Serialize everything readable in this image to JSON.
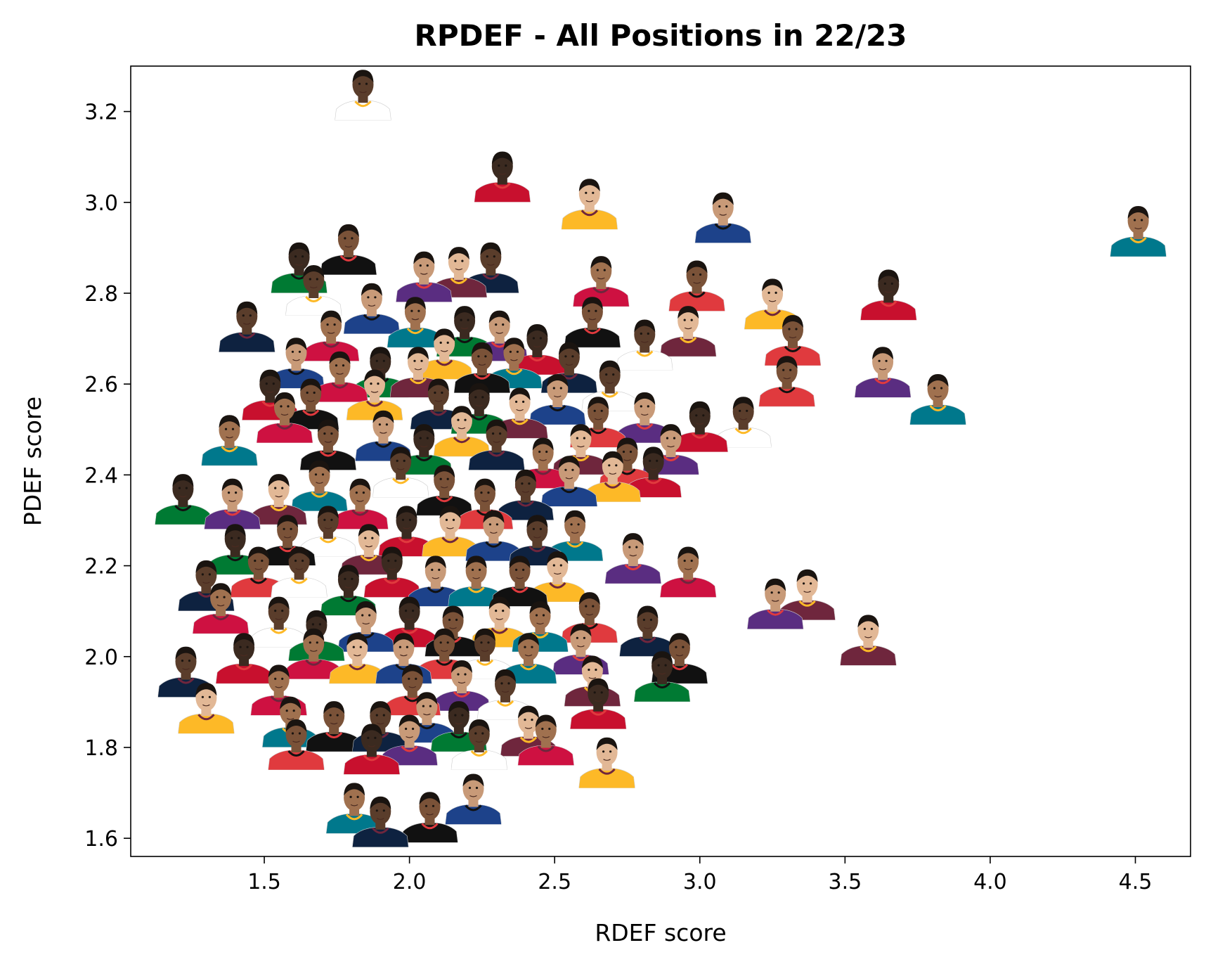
{
  "chart_data": {
    "type": "scatter",
    "title": "RPDEF - All Positions in 22/23",
    "xlabel": "RDEF score",
    "ylabel": "PDEF score",
    "xlim": [
      1.04,
      4.69
    ],
    "ylim": [
      1.56,
      3.3
    ],
    "xticks": [
      "1.5",
      "2.0",
      "2.5",
      "3.0",
      "3.5",
      "4.0",
      "4.5"
    ],
    "yticks": [
      "1.6",
      "1.8",
      "2.0",
      "2.2",
      "2.4",
      "2.6",
      "2.8",
      "3.0",
      "3.2"
    ],
    "grid": false,
    "marker": "player-headshot",
    "colors": {
      "jersey_palette": [
        "#1d428a",
        "#ce1141",
        "#111111",
        "#ffffff",
        "#007a33",
        "#fdb927",
        "#5a2d81",
        "#00788c",
        "#e03a3e",
        "#0e2240",
        "#c8102e",
        "#6f263d"
      ],
      "skin_palette": [
        "#3b2a20",
        "#5a3d2b",
        "#7a5238",
        "#a0714f",
        "#c89a78",
        "#e2b896"
      ]
    },
    "points": [
      {
        "x": 1.84,
        "y": 3.23
      },
      {
        "x": 2.32,
        "y": 3.05
      },
      {
        "x": 2.62,
        "y": 2.99
      },
      {
        "x": 3.08,
        "y": 2.96
      },
      {
        "x": 4.51,
        "y": 2.93
      },
      {
        "x": 1.79,
        "y": 2.89
      },
      {
        "x": 2.66,
        "y": 2.82
      },
      {
        "x": 2.28,
        "y": 2.85
      },
      {
        "x": 2.05,
        "y": 2.83
      },
      {
        "x": 2.17,
        "y": 2.84
      },
      {
        "x": 1.67,
        "y": 2.8
      },
      {
        "x": 2.99,
        "y": 2.81
      },
      {
        "x": 1.62,
        "y": 2.85
      },
      {
        "x": 3.65,
        "y": 2.79
      },
      {
        "x": 3.25,
        "y": 2.77
      },
      {
        "x": 1.44,
        "y": 2.72
      },
      {
        "x": 1.87,
        "y": 2.76
      },
      {
        "x": 2.02,
        "y": 2.73
      },
      {
        "x": 2.19,
        "y": 2.71
      },
      {
        "x": 2.31,
        "y": 2.7
      },
      {
        "x": 2.63,
        "y": 2.73
      },
      {
        "x": 2.81,
        "y": 2.68
      },
      {
        "x": 2.96,
        "y": 2.71
      },
      {
        "x": 3.32,
        "y": 2.69
      },
      {
        "x": 1.73,
        "y": 2.7
      },
      {
        "x": 2.44,
        "y": 2.67
      },
      {
        "x": 2.12,
        "y": 2.66
      },
      {
        "x": 1.61,
        "y": 2.64
      },
      {
        "x": 1.76,
        "y": 2.61
      },
      {
        "x": 1.9,
        "y": 2.62
      },
      {
        "x": 2.03,
        "y": 2.62
      },
      {
        "x": 2.25,
        "y": 2.63
      },
      {
        "x": 2.36,
        "y": 2.64
      },
      {
        "x": 2.55,
        "y": 2.63
      },
      {
        "x": 2.69,
        "y": 2.59
      },
      {
        "x": 3.3,
        "y": 2.6
      },
      {
        "x": 3.63,
        "y": 2.62
      },
      {
        "x": 1.52,
        "y": 2.57
      },
      {
        "x": 1.66,
        "y": 2.55
      },
      {
        "x": 1.88,
        "y": 2.57
      },
      {
        "x": 2.1,
        "y": 2.55
      },
      {
        "x": 2.24,
        "y": 2.54
      },
      {
        "x": 2.38,
        "y": 2.53
      },
      {
        "x": 2.51,
        "y": 2.56
      },
      {
        "x": 2.65,
        "y": 2.51
      },
      {
        "x": 2.81,
        "y": 2.52
      },
      {
        "x": 3.0,
        "y": 2.5
      },
      {
        "x": 3.15,
        "y": 2.51
      },
      {
        "x": 3.82,
        "y": 2.56
      },
      {
        "x": 1.38,
        "y": 2.47
      },
      {
        "x": 1.57,
        "y": 2.52
      },
      {
        "x": 1.72,
        "y": 2.46
      },
      {
        "x": 1.91,
        "y": 2.48
      },
      {
        "x": 2.05,
        "y": 2.45
      },
      {
        "x": 2.18,
        "y": 2.49
      },
      {
        "x": 2.3,
        "y": 2.46
      },
      {
        "x": 2.46,
        "y": 2.42
      },
      {
        "x": 2.59,
        "y": 2.45
      },
      {
        "x": 2.75,
        "y": 2.42
      },
      {
        "x": 2.9,
        "y": 2.45
      },
      {
        "x": 1.22,
        "y": 2.34
      },
      {
        "x": 1.39,
        "y": 2.33
      },
      {
        "x": 1.55,
        "y": 2.34
      },
      {
        "x": 1.69,
        "y": 2.37
      },
      {
        "x": 1.83,
        "y": 2.33
      },
      {
        "x": 1.97,
        "y": 2.4
      },
      {
        "x": 2.12,
        "y": 2.36
      },
      {
        "x": 2.26,
        "y": 2.33
      },
      {
        "x": 2.4,
        "y": 2.35
      },
      {
        "x": 2.55,
        "y": 2.38
      },
      {
        "x": 2.7,
        "y": 2.39
      },
      {
        "x": 2.84,
        "y": 2.4
      },
      {
        "x": 1.4,
        "y": 2.23
      },
      {
        "x": 1.58,
        "y": 2.25
      },
      {
        "x": 1.72,
        "y": 2.27
      },
      {
        "x": 1.86,
        "y": 2.23
      },
      {
        "x": 1.99,
        "y": 2.27
      },
      {
        "x": 2.14,
        "y": 2.27
      },
      {
        "x": 2.29,
        "y": 2.26
      },
      {
        "x": 2.44,
        "y": 2.25
      },
      {
        "x": 2.57,
        "y": 2.26
      },
      {
        "x": 2.77,
        "y": 2.21
      },
      {
        "x": 2.96,
        "y": 2.18
      },
      {
        "x": 1.3,
        "y": 2.15
      },
      {
        "x": 1.48,
        "y": 2.18
      },
      {
        "x": 1.62,
        "y": 2.18
      },
      {
        "x": 1.79,
        "y": 2.14
      },
      {
        "x": 1.94,
        "y": 2.18
      },
      {
        "x": 2.09,
        "y": 2.16
      },
      {
        "x": 2.23,
        "y": 2.16
      },
      {
        "x": 2.38,
        "y": 2.16
      },
      {
        "x": 2.51,
        "y": 2.17
      },
      {
        "x": 3.26,
        "y": 2.11
      },
      {
        "x": 3.37,
        "y": 2.13
      },
      {
        "x": 1.35,
        "y": 2.1
      },
      {
        "x": 1.55,
        "y": 2.07
      },
      {
        "x": 1.68,
        "y": 2.04
      },
      {
        "x": 1.85,
        "y": 2.06
      },
      {
        "x": 2.0,
        "y": 2.07
      },
      {
        "x": 2.15,
        "y": 2.05
      },
      {
        "x": 2.31,
        "y": 2.07
      },
      {
        "x": 2.45,
        "y": 2.06
      },
      {
        "x": 2.62,
        "y": 2.08
      },
      {
        "x": 2.82,
        "y": 2.05
      },
      {
        "x": 3.58,
        "y": 2.03
      },
      {
        "x": 1.43,
        "y": 1.99
      },
      {
        "x": 1.67,
        "y": 2.0
      },
      {
        "x": 1.82,
        "y": 1.99
      },
      {
        "x": 1.98,
        "y": 1.99
      },
      {
        "x": 2.12,
        "y": 2.0
      },
      {
        "x": 2.26,
        "y": 2.0
      },
      {
        "x": 2.41,
        "y": 1.99
      },
      {
        "x": 2.59,
        "y": 2.01
      },
      {
        "x": 2.93,
        "y": 1.99
      },
      {
        "x": 1.23,
        "y": 1.96
      },
      {
        "x": 1.55,
        "y": 1.92
      },
      {
        "x": 2.01,
        "y": 1.92
      },
      {
        "x": 2.18,
        "y": 1.93
      },
      {
        "x": 2.33,
        "y": 1.91
      },
      {
        "x": 2.63,
        "y": 1.94
      },
      {
        "x": 2.87,
        "y": 1.95
      },
      {
        "x": 1.3,
        "y": 1.88
      },
      {
        "x": 1.59,
        "y": 1.85
      },
      {
        "x": 1.74,
        "y": 1.84
      },
      {
        "x": 1.9,
        "y": 1.84
      },
      {
        "x": 2.06,
        "y": 1.86
      },
      {
        "x": 2.17,
        "y": 1.84
      },
      {
        "x": 2.41,
        "y": 1.83
      },
      {
        "x": 2.65,
        "y": 1.89
      },
      {
        "x": 1.61,
        "y": 1.8
      },
      {
        "x": 1.87,
        "y": 1.79
      },
      {
        "x": 2.0,
        "y": 1.81
      },
      {
        "x": 2.24,
        "y": 1.8
      },
      {
        "x": 2.47,
        "y": 1.81
      },
      {
        "x": 2.68,
        "y": 1.76
      },
      {
        "x": 1.81,
        "y": 1.66
      },
      {
        "x": 1.9,
        "y": 1.63
      },
      {
        "x": 2.07,
        "y": 1.64
      },
      {
        "x": 2.22,
        "y": 1.68
      }
    ]
  }
}
